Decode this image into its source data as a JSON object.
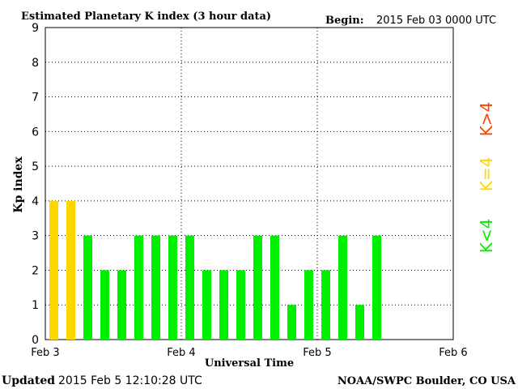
{
  "chart_data": {
    "type": "bar",
    "title": "Estimated Planetary K index (3 hour data)",
    "begin_label": "Begin:",
    "begin_value": "2015 Feb 03 0000 UTC",
    "ylabel": "Kp index",
    "xlabel": "Universal Time",
    "ylim": [
      0,
      9
    ],
    "yticks": [
      "0",
      "1",
      "2",
      "3",
      "4",
      "5",
      "6",
      "7",
      "8",
      "9"
    ],
    "xticks": [
      "Feb 3",
      "Feb 4",
      "Feb 5",
      "Feb 6"
    ],
    "slots_per_day": 8,
    "days": 3,
    "values": [
      4,
      4,
      3,
      2,
      2,
      3,
      3,
      3,
      3,
      2,
      2,
      2,
      3,
      3,
      1,
      2,
      2,
      3,
      1,
      3
    ],
    "colors": {
      "below": "#00ee00",
      "equal": "#ffd700",
      "above": "#ff4500",
      "grid": "#000000"
    },
    "legend": {
      "below": "K<4",
      "equal": "K=4",
      "above": "K>4",
      "placement": "right"
    },
    "grid": true
  },
  "footer": {
    "updated_label": "Updated",
    "updated_value": "2015 Feb  5 12:10:28 UTC",
    "source": "NOAA/SWPC Boulder, CO USA"
  }
}
